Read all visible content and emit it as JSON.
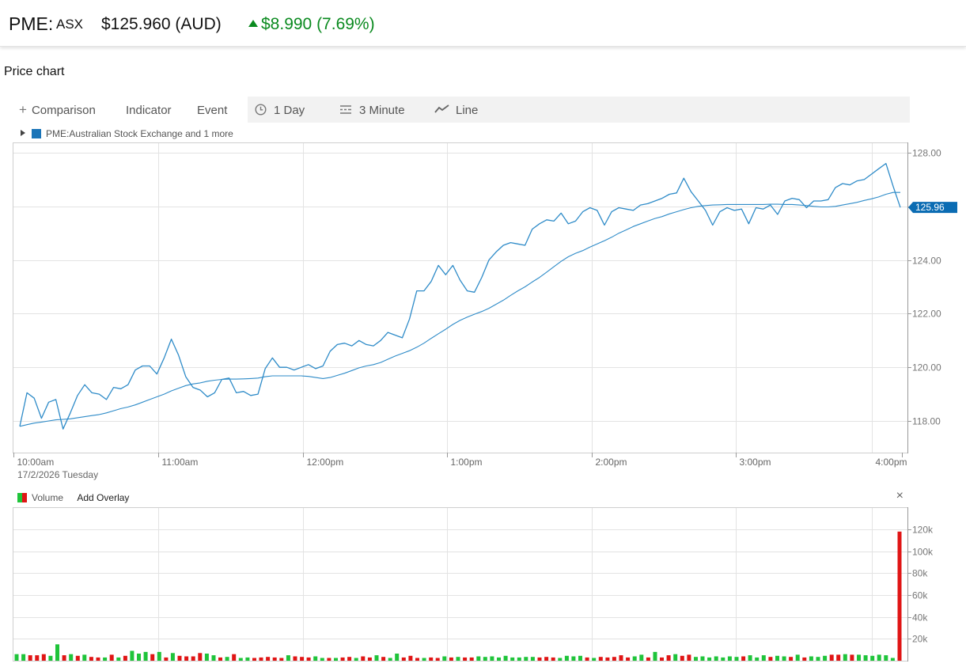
{
  "header": {
    "ticker": "PME:",
    "exchange": "ASX",
    "price": "$125.960 (AUD)",
    "change": "$8.990 (7.69%)",
    "change_color": "#0a8a1f"
  },
  "section_title": "Price chart",
  "toolbar": {
    "comparison": "Comparison",
    "indicator": "Indicator",
    "event": "Event",
    "range": "1 Day",
    "interval": "3 Minute",
    "chart_type": "Line",
    "icons": [
      "plus-icon",
      "clock-icon",
      "interval-icon",
      "line-chart-icon"
    ]
  },
  "series_legend": "PME:Australian Stock Exchange and 1 more",
  "date_label": "17/2/2026 Tuesday",
  "volume_panel": {
    "label": "Volume",
    "add_overlay": "Add Overlay",
    "close": "×"
  },
  "colors": {
    "price_line": "#2e8bc8",
    "up": "#1fc43a",
    "down": "#e01515",
    "last_price_tag": "#0b6cb3"
  },
  "chart_data": [
    {
      "type": "line",
      "title": "",
      "xlabel": "",
      "ylabel": "",
      "ylim": [
        116.8,
        128.5
      ],
      "yticks": [
        118,
        120,
        122,
        124,
        126,
        128
      ],
      "ytick_labels": [
        "118.00",
        "120.00",
        "122.00",
        "124.00",
        "126.00",
        "128.00"
      ],
      "xticks": [
        "10:00am",
        "11:00am",
        "12:00pm",
        "1:00pm",
        "2:00pm",
        "3:00pm",
        "4:00pm"
      ],
      "x_interval_minutes": 3,
      "last_price_label": "125.96",
      "grid": true,
      "series": [
        {
          "name": "PME:Australian Stock Exchange",
          "values": [
            117.8,
            119.05,
            118.85,
            118.1,
            118.7,
            118.8,
            117.7,
            118.3,
            118.95,
            119.35,
            119.05,
            119.0,
            118.8,
            119.25,
            119.2,
            119.35,
            119.9,
            120.05,
            120.05,
            119.75,
            120.35,
            121.05,
            120.45,
            119.65,
            119.25,
            119.15,
            118.9,
            119.05,
            119.55,
            119.6,
            119.05,
            119.1,
            118.95,
            119.0,
            119.95,
            120.35,
            120.0,
            120.0,
            119.9,
            120.0,
            120.1,
            119.95,
            120.05,
            120.6,
            120.85,
            120.9,
            120.8,
            121.0,
            120.85,
            120.8,
            121.0,
            121.3,
            121.2,
            121.1,
            121.8,
            122.85,
            122.85,
            123.2,
            123.8,
            123.45,
            123.8,
            123.25,
            122.85,
            122.8,
            123.35,
            124.0,
            124.3,
            124.55,
            124.65,
            124.6,
            124.55,
            125.15,
            125.35,
            125.5,
            125.45,
            125.75,
            125.35,
            125.45,
            125.8,
            125.95,
            125.85,
            125.3,
            125.8,
            125.95,
            125.9,
            125.85,
            126.05,
            126.1,
            126.2,
            126.3,
            126.45,
            126.5,
            127.05,
            126.55,
            126.2,
            125.85,
            125.3,
            125.8,
            125.95,
            125.85,
            125.9,
            125.35,
            125.95,
            125.9,
            126.05,
            125.7,
            126.2,
            126.3,
            126.25,
            125.95,
            126.2,
            126.2,
            126.25,
            126.7,
            126.85,
            126.8,
            126.95,
            127.0,
            127.2,
            127.4,
            127.6,
            126.75,
            125.96
          ]
        },
        {
          "name": "",
          "values": [
            117.8,
            117.86,
            117.92,
            117.96,
            118.0,
            118.04,
            118.06,
            118.08,
            118.12,
            118.16,
            118.2,
            118.24,
            118.3,
            118.38,
            118.46,
            118.52,
            118.6,
            118.7,
            118.8,
            118.9,
            119.0,
            119.12,
            119.22,
            119.32,
            119.38,
            119.42,
            119.48,
            119.52,
            119.55,
            119.56,
            119.56,
            119.57,
            119.58,
            119.6,
            119.65,
            119.68,
            119.68,
            119.68,
            119.68,
            119.68,
            119.66,
            119.62,
            119.58,
            119.62,
            119.7,
            119.78,
            119.88,
            119.98,
            120.05,
            120.1,
            120.18,
            120.3,
            120.42,
            120.52,
            120.62,
            120.75,
            120.9,
            121.08,
            121.25,
            121.42,
            121.6,
            121.75,
            121.87,
            121.98,
            122.08,
            122.2,
            122.35,
            122.5,
            122.68,
            122.85,
            123.0,
            123.18,
            123.35,
            123.55,
            123.75,
            123.95,
            124.12,
            124.25,
            124.35,
            124.48,
            124.6,
            124.72,
            124.85,
            125.0,
            125.12,
            125.25,
            125.35,
            125.45,
            125.55,
            125.62,
            125.72,
            125.8,
            125.88,
            125.95,
            126.0,
            126.03,
            126.05,
            126.06,
            126.07,
            126.07,
            126.07,
            126.07,
            126.07,
            126.07,
            126.08,
            126.08,
            126.07,
            126.07,
            126.05,
            126.03,
            126.0,
            125.98,
            125.98,
            126.0,
            126.05,
            126.1,
            126.15,
            126.22,
            126.28,
            126.35,
            126.45,
            126.52,
            126.52
          ]
        }
      ]
    },
    {
      "type": "bar",
      "title": "",
      "xlabel": "",
      "ylabel": "Volume",
      "ylim": [
        0,
        130000
      ],
      "yticks": [
        20000,
        40000,
        60000,
        80000,
        100000,
        120000
      ],
      "ytick_labels": [
        "20k",
        "40k",
        "60k",
        "80k",
        "100k",
        "120k"
      ],
      "series": [
        {
          "name": "Volume",
          "values": [
            6000,
            6000,
            5000,
            5000,
            6000,
            4500,
            15000,
            5000,
            6000,
            4500,
            5500,
            3500,
            3000,
            3000,
            5500,
            3000,
            4500,
            9000,
            6500,
            8000,
            6000,
            8000,
            3000,
            7000,
            4500,
            4000,
            4000,
            7000,
            6500,
            5000,
            3000,
            3500,
            6000,
            2500,
            3000,
            2500,
            3000,
            3500,
            3000,
            2500,
            5000,
            4000,
            3500,
            3000,
            4000,
            2500,
            2500,
            2500,
            3000,
            3500,
            2500,
            4000,
            3000,
            5000,
            3500,
            2500,
            6500,
            3000,
            4500,
            2500,
            2500,
            3000,
            2500,
            4000,
            3000,
            3500,
            3000,
            3000,
            4000,
            3500,
            4000,
            3000,
            4500,
            3000,
            3000,
            3500,
            3500,
            3000,
            3500,
            3000,
            2500,
            4500,
            4000,
            4500,
            3000,
            2500,
            3500,
            3000,
            3500,
            5000,
            3000,
            4000,
            5500,
            3000,
            8000,
            3000,
            5000,
            6000,
            4500,
            5500,
            3500,
            4000,
            3000,
            4000,
            3000,
            4000,
            3500,
            4000,
            5000,
            3000,
            5000,
            3500,
            4500,
            4000,
            3500,
            5500,
            3000,
            4000,
            3500,
            4500,
            5500,
            5500,
            6000,
            5500,
            5500,
            5000,
            4500,
            5500,
            5000,
            2500,
            118000
          ],
          "directions": [
            1,
            1,
            0,
            0,
            0,
            1,
            1,
            0,
            1,
            0,
            1,
            0,
            0,
            1,
            0,
            1,
            0,
            1,
            1,
            1,
            0,
            1,
            0,
            1,
            0,
            0,
            0,
            0,
            1,
            1,
            0,
            1,
            0,
            1,
            1,
            0,
            0,
            0,
            0,
            0,
            1,
            0,
            0,
            0,
            1,
            1,
            0,
            1,
            0,
            0,
            1,
            0,
            0,
            1,
            0,
            1,
            1,
            0,
            0,
            0,
            1,
            0,
            0,
            1,
            0,
            1,
            0,
            0,
            1,
            1,
            1,
            1,
            1,
            1,
            1,
            1,
            1,
            0,
            0,
            0,
            1,
            1,
            1,
            1,
            0,
            1,
            0,
            0,
            0,
            0,
            0,
            1,
            1,
            0,
            1,
            0,
            0,
            1,
            0,
            0,
            1,
            1,
            1,
            1,
            1,
            1,
            1,
            0,
            1,
            1,
            1,
            0,
            1,
            1,
            0,
            1,
            0,
            1,
            1,
            1,
            0,
            0,
            1,
            0,
            1,
            1,
            1,
            1,
            1,
            1,
            0
          ]
        }
      ]
    }
  ]
}
